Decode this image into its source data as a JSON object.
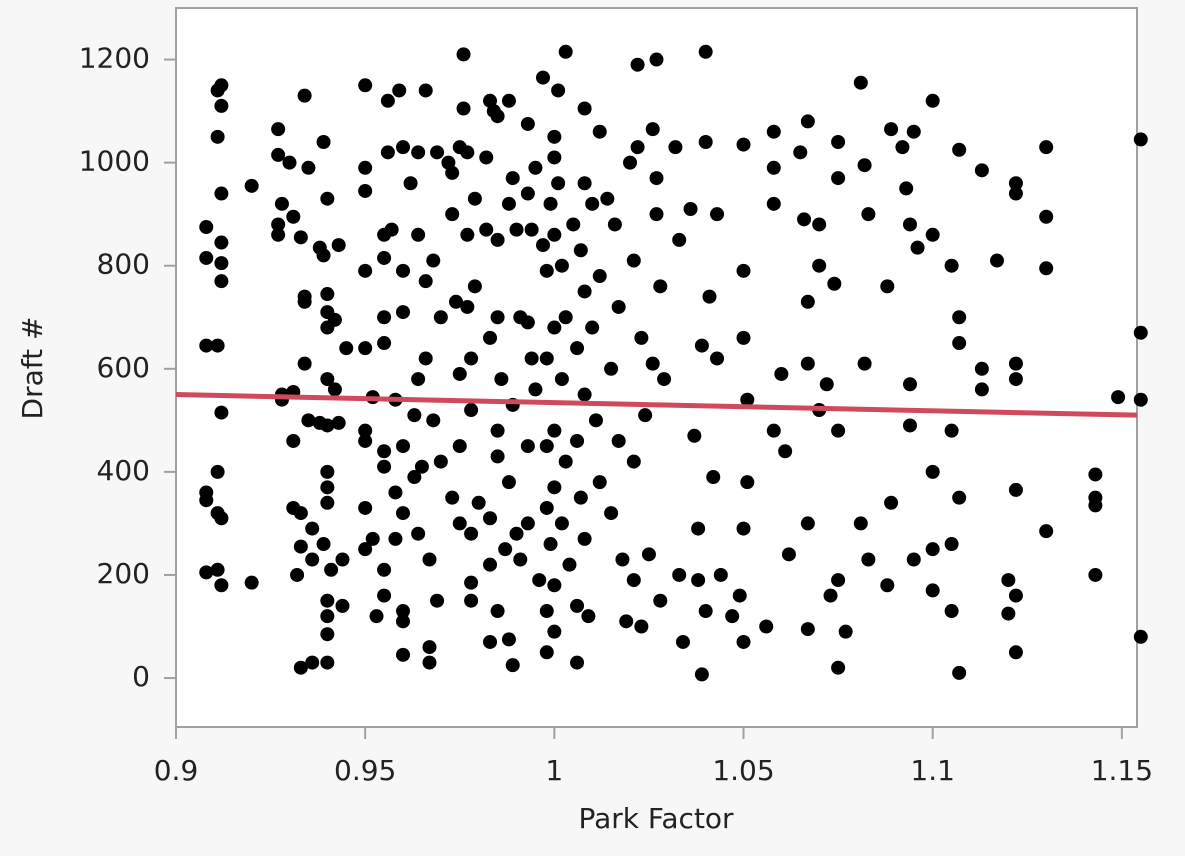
{
  "chart_data": {
    "type": "scatter",
    "x_label": "Park Factor",
    "y_label": "Draft #",
    "xlim": [
      0.9,
      1.154
    ],
    "xticks": [
      0.9,
      0.95,
      1,
      1.05,
      1.1,
      1.15
    ],
    "ylim": [
      -95,
      1300
    ],
    "yticks": [
      0,
      200,
      400,
      600,
      800,
      1000,
      1200
    ],
    "color": "#000000",
    "x": [
      0.908,
      0.908,
      0.908,
      0.908,
      0.908,
      0.908,
      0.911,
      0.912,
      0.912,
      0.911,
      0.912,
      0.912,
      0.912,
      0.912,
      0.911,
      0.912,
      0.911,
      0.911,
      0.912,
      0.911,
      0.912,
      0.92,
      0.92,
      0.927,
      0.927,
      0.928,
      0.927,
      0.927,
      0.928,
      0.928,
      0.93,
      0.931,
      0.931,
      0.931,
      0.931,
      0.932,
      0.933,
      0.933,
      0.934,
      0.934,
      0.934,
      0.934,
      0.933,
      0.933,
      0.935,
      0.935,
      0.936,
      0.936,
      0.936,
      0.938,
      0.939,
      0.939,
      0.938,
      0.939,
      0.94,
      0.94,
      0.94,
      0.94,
      0.94,
      0.94,
      0.94,
      0.94,
      0.94,
      0.94,
      0.94,
      0.94,
      0.94,
      0.941,
      0.942,
      0.942,
      0.943,
      0.943,
      0.944,
      0.944,
      0.945,
      0.95,
      0.95,
      0.95,
      0.95,
      0.95,
      0.95,
      0.95,
      0.95,
      0.95,
      0.952,
      0.952,
      0.953,
      0.955,
      0.955,
      0.955,
      0.955,
      0.955,
      0.955,
      0.955,
      0.955,
      0.956,
      0.956,
      0.957,
      0.958,
      0.958,
      0.958,
      0.959,
      0.96,
      0.96,
      0.96,
      0.96,
      0.96,
      0.96,
      0.96,
      0.96,
      0.962,
      0.963,
      0.963,
      0.964,
      0.964,
      0.964,
      0.964,
      0.965,
      0.966,
      0.966,
      0.966,
      0.967,
      0.967,
      0.967,
      0.968,
      0.968,
      0.969,
      0.969,
      0.97,
      0.97,
      0.972,
      0.973,
      0.973,
      0.973,
      0.974,
      0.975,
      0.975,
      0.975,
      0.975,
      0.976,
      0.976,
      0.977,
      0.977,
      0.977,
      0.978,
      0.978,
      0.978,
      0.978,
      0.978,
      0.979,
      0.979,
      0.98,
      0.982,
      0.982,
      0.983,
      0.983,
      0.983,
      0.983,
      0.983,
      0.984,
      0.985,
      0.985,
      0.985,
      0.985,
      0.985,
      0.985,
      0.986,
      0.987,
      0.988,
      0.988,
      0.988,
      0.988,
      0.989,
      0.989,
      0.989,
      0.99,
      0.99,
      0.991,
      0.991,
      0.993,
      0.993,
      0.993,
      0.993,
      0.993,
      0.994,
      0.994,
      0.995,
      0.995,
      0.996,
      0.997,
      0.997,
      0.998,
      0.998,
      0.998,
      0.998,
      0.998,
      0.998,
      0.999,
      0.999,
      1.0,
      1.0,
      1.0,
      1.0,
      1.0,
      1.0,
      1.0,
      1.0,
      1.001,
      1.001,
      1.002,
      1.002,
      1.002,
      1.003,
      1.003,
      1.003,
      1.004,
      1.005,
      1.006,
      1.006,
      1.006,
      1.006,
      1.007,
      1.007,
      1.008,
      1.008,
      1.008,
      1.008,
      1.008,
      1.009,
      1.01,
      1.01,
      1.011,
      1.012,
      1.012,
      1.012,
      1.014,
      1.015,
      1.015,
      1.016,
      1.017,
      1.017,
      1.018,
      1.019,
      1.02,
      1.021,
      1.021,
      1.021,
      1.022,
      1.022,
      1.023,
      1.023,
      1.024,
      1.025,
      1.026,
      1.026,
      1.027,
      1.027,
      1.027,
      1.028,
      1.028,
      1.029,
      1.032,
      1.033,
      1.033,
      1.034,
      1.036,
      1.037,
      1.038,
      1.038,
      1.039,
      1.039,
      1.04,
      1.04,
      1.04,
      1.041,
      1.042,
      1.043,
      1.043,
      1.044,
      1.047,
      1.049,
      1.05,
      1.05,
      1.05,
      1.05,
      1.05,
      1.051,
      1.051,
      1.056,
      1.058,
      1.058,
      1.058,
      1.058,
      1.06,
      1.061,
      1.062,
      1.065,
      1.066,
      1.067,
      1.067,
      1.067,
      1.067,
      1.067,
      1.07,
      1.07,
      1.07,
      1.072,
      1.073,
      1.074,
      1.075,
      1.075,
      1.075,
      1.075,
      1.075,
      1.077,
      1.081,
      1.081,
      1.082,
      1.082,
      1.083,
      1.083,
      1.088,
      1.088,
      1.089,
      1.089,
      1.092,
      1.093,
      1.094,
      1.094,
      1.094,
      1.095,
      1.095,
      1.096,
      1.1,
      1.1,
      1.1,
      1.1,
      1.1,
      1.105,
      1.105,
      1.105,
      1.105,
      1.107,
      1.107,
      1.107,
      1.107,
      1.107,
      1.113,
      1.113,
      1.113,
      1.117,
      1.12,
      1.12,
      1.122,
      1.122,
      1.122,
      1.122,
      1.122,
      1.122,
      1.122,
      1.13,
      1.13,
      1.13,
      1.13,
      1.143,
      1.143,
      1.143,
      1.143,
      1.149,
      1.155,
      1.155,
      1.155,
      1.155
    ],
    "values": [
      875,
      815,
      645,
      360,
      345,
      205,
      1140,
      1150,
      1110,
      1050,
      940,
      845,
      805,
      770,
      645,
      515,
      400,
      320,
      310,
      210,
      180,
      955,
      185,
      1065,
      1015,
      920,
      880,
      860,
      550,
      540,
      1000,
      895,
      555,
      460,
      330,
      200,
      20,
      855,
      1130,
      740,
      730,
      610,
      320,
      255,
      990,
      500,
      290,
      230,
      30,
      835,
      820,
      1040,
      495,
      260,
      930,
      745,
      710,
      680,
      580,
      490,
      400,
      370,
      340,
      150,
      120,
      85,
      30,
      210,
      695,
      560,
      840,
      495,
      230,
      140,
      640,
      1150,
      990,
      945,
      790,
      640,
      480,
      460,
      330,
      250,
      545,
      270,
      120,
      860,
      815,
      700,
      650,
      440,
      410,
      210,
      160,
      1120,
      1020,
      870,
      540,
      360,
      270,
      1140,
      1030,
      790,
      710,
      450,
      320,
      130,
      110,
      45,
      960,
      390,
      510,
      1020,
      860,
      580,
      280,
      410,
      1140,
      770,
      620,
      230,
      60,
      30,
      810,
      500,
      1020,
      150,
      700,
      420,
      1000,
      980,
      900,
      350,
      730,
      1030,
      590,
      450,
      300,
      1210,
      1105,
      1020,
      860,
      720,
      620,
      520,
      280,
      185,
      150,
      930,
      760,
      340,
      1010,
      870,
      1120,
      660,
      310,
      220,
      70,
      1100,
      1090,
      850,
      700,
      480,
      430,
      130,
      580,
      250,
      1120,
      920,
      380,
      75,
      970,
      530,
      25,
      870,
      280,
      700,
      230,
      1075,
      940,
      690,
      450,
      300,
      870,
      620,
      990,
      560,
      190,
      1165,
      840,
      790,
      620,
      450,
      330,
      130,
      50,
      920,
      260,
      1050,
      1010,
      860,
      680,
      480,
      370,
      180,
      90,
      1140,
      960,
      800,
      580,
      300,
      1215,
      700,
      420,
      220,
      880,
      640,
      460,
      140,
      30,
      830,
      350,
      1105,
      960,
      750,
      550,
      270,
      120,
      920,
      680,
      500,
      1060,
      780,
      380,
      930,
      600,
      320,
      880,
      720,
      460,
      230,
      110,
      1000,
      810,
      420,
      190,
      1190,
      1030,
      660,
      100,
      510,
      240,
      1065,
      610,
      1200,
      970,
      900,
      760,
      150,
      580,
      1030,
      850,
      200,
      70,
      910,
      470,
      290,
      190,
      645,
      7,
      1215,
      1040,
      130,
      740,
      390,
      900,
      620,
      200,
      120,
      160,
      1035,
      790,
      660,
      290,
      70,
      540,
      380,
      100,
      1060,
      990,
      920,
      480,
      590,
      440,
      240,
      1020,
      890,
      1080,
      730,
      610,
      300,
      95,
      880,
      520,
      800,
      570,
      160,
      765,
      970,
      1040,
      480,
      190,
      20,
      90,
      1155,
      300,
      995,
      610,
      230,
      900,
      760,
      180,
      1065,
      340,
      1030,
      950,
      880,
      490,
      570,
      1060,
      230,
      835,
      1120,
      860,
      400,
      250,
      170,
      800,
      480,
      260,
      130,
      700,
      650,
      1025,
      350,
      10,
      985,
      600,
      560,
      810,
      190,
      125,
      960,
      940,
      610,
      580,
      365,
      160,
      50,
      1030,
      895,
      795,
      285,
      395,
      350,
      335,
      200,
      545,
      1045,
      670,
      540,
      80
    ],
    "fit_line": {
      "x": [
        0.9,
        1.154
      ],
      "y": [
        550,
        510
      ],
      "color": "#cf4a5c"
    }
  }
}
